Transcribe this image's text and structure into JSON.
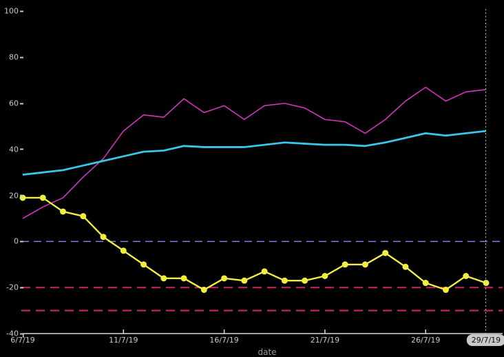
{
  "chart_data": {
    "type": "line",
    "title": "",
    "xlabel": "date",
    "ylabel": "",
    "ylim": [
      -40,
      100
    ],
    "grid": false,
    "legend": "none",
    "background": "#000000",
    "x": [
      "6/7/19",
      "7/7/19",
      "8/7/19",
      "9/7/19",
      "10/7/19",
      "11/7/19",
      "12/7/19",
      "13/7/19",
      "14/7/19",
      "15/7/19",
      "16/7/19",
      "17/7/19",
      "18/7/19",
      "19/7/19",
      "20/7/19",
      "21/7/19",
      "22/7/19",
      "23/7/19",
      "24/7/19",
      "25/7/19",
      "26/7/19",
      "27/7/19",
      "28/7/19",
      "29/7/19"
    ],
    "series": [
      {
        "name": "magenta-series",
        "color": "#d335bb",
        "line_width": 1.6,
        "markers": false,
        "values": [
          10,
          15,
          19,
          28,
          36,
          48,
          55,
          54,
          62,
          56,
          59,
          53,
          59,
          60,
          58,
          53,
          52,
          47,
          53,
          61,
          67,
          61,
          65,
          66
        ]
      },
      {
        "name": "cyan-series",
        "color": "#38c6e9",
        "line_width": 2.8,
        "markers": false,
        "values": [
          29,
          30,
          31,
          33,
          35,
          37,
          39,
          39.5,
          41.5,
          41,
          41,
          41,
          42,
          43,
          42.5,
          42,
          42,
          41.5,
          43,
          45,
          47,
          46,
          47,
          48
        ]
      },
      {
        "name": "yellow-series",
        "color": "#f2ee3f",
        "line_width": 2.4,
        "markers": true,
        "marker_radius": 4.5,
        "values": [
          19,
          19,
          13,
          11,
          2,
          -4,
          -10,
          -16,
          -16,
          -21,
          -16,
          -17,
          -13,
          -17,
          -17,
          -15,
          -10,
          -10,
          -5,
          -11,
          -18,
          -21,
          -15,
          -18
        ]
      }
    ],
    "reference_lines": [
      {
        "name": "zero-line",
        "y": 0,
        "color": "#8f7ae0",
        "style": "dashed",
        "width": 1.5,
        "dash": "11 7"
      },
      {
        "name": "lower-threshold-1",
        "y": -20,
        "color": "#c02364",
        "style": "dashed",
        "width": 2.2,
        "dash": "13 8"
      },
      {
        "name": "lower-threshold-2",
        "y": -30,
        "color": "#c02364",
        "style": "dashed",
        "width": 2.2,
        "dash": "13 8"
      }
    ],
    "y_ticks": [
      "100",
      "80",
      "60",
      "40",
      "20",
      "0",
      "-20",
      "-40"
    ],
    "y_tick_values": [
      100,
      80,
      60,
      40,
      20,
      0,
      -20,
      -40
    ],
    "x_ticks": [
      {
        "label": "6/7/19",
        "index": 0
      },
      {
        "label": "11/7/19",
        "index": 5
      },
      {
        "label": "16/7/19",
        "index": 10
      },
      {
        "label": "21/7/19",
        "index": 15
      },
      {
        "label": "26/7/19",
        "index": 20
      }
    ],
    "cursor": {
      "label": "29/7/19",
      "index": 23,
      "line_color": "#b5b5b5",
      "box_color": "#c9c9c9",
      "text_color": "#0a0a0a"
    },
    "axis_color": "#d9d9d9",
    "tick_label_color": "#c9c9c9"
  }
}
